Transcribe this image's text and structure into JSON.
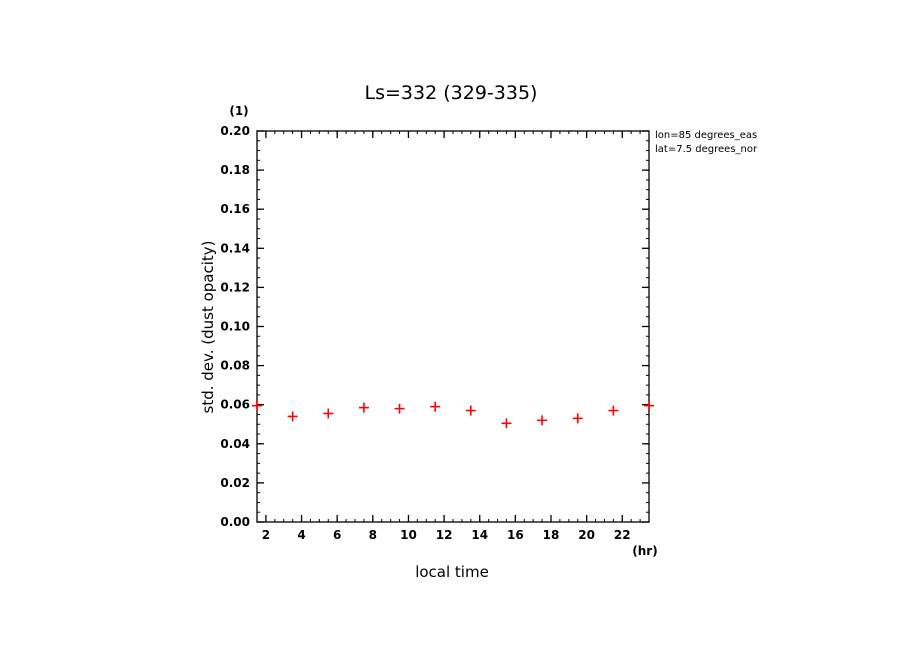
{
  "chart_data": {
    "type": "scatter",
    "title": "Ls=332 (329-335)",
    "xlabel": "local time",
    "ylabel": "std. dev. (dust opacity)",
    "x_unit": "(hr)",
    "y_unit": "(1)",
    "xlim": [
      1.5,
      23.5
    ],
    "ylim": [
      0,
      0.2
    ],
    "x_ticks": [
      2,
      4,
      6,
      8,
      10,
      12,
      14,
      16,
      18,
      20,
      22
    ],
    "y_ticks": [
      0.0,
      0.02,
      0.04,
      0.06,
      0.08,
      0.1,
      0.12,
      0.14,
      0.16,
      0.18,
      0.2
    ],
    "annotations": [
      "lon=85 degrees_eas",
      "lat=7.5 degrees_nor"
    ],
    "marker_color": "#ff0000",
    "series": [
      {
        "name": "std. dev.",
        "x": [
          1.5,
          3.5,
          5.5,
          7.5,
          9.5,
          11.5,
          13.5,
          15.5,
          17.5,
          19.5,
          21.5,
          23.5
        ],
        "y": [
          0.0595,
          0.054,
          0.0555,
          0.0585,
          0.058,
          0.059,
          0.057,
          0.0505,
          0.052,
          0.053,
          0.057,
          0.0595
        ]
      }
    ]
  }
}
